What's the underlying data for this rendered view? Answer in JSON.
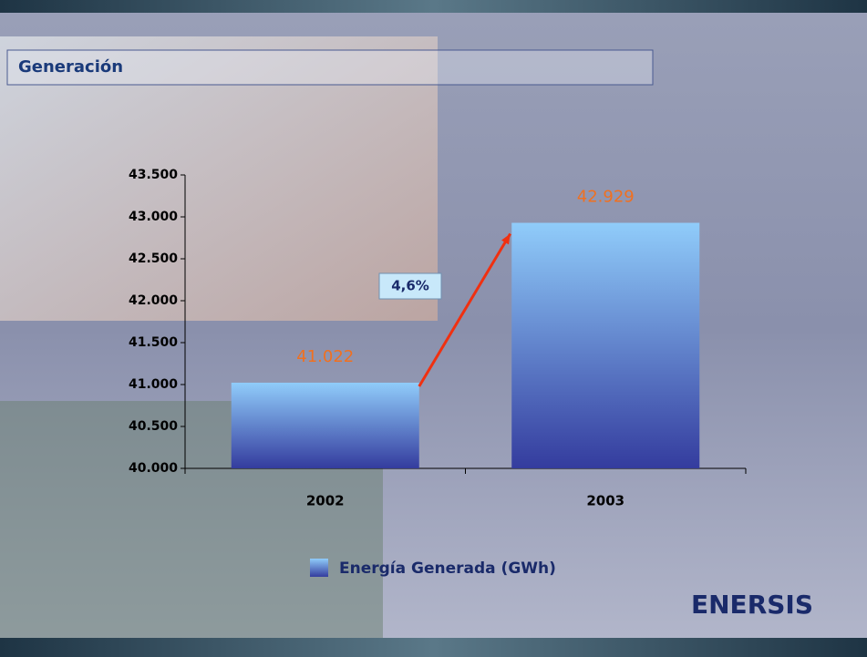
{
  "chart_data": {
    "type": "bar",
    "title": "Generación",
    "categories": [
      "2002",
      "2003"
    ],
    "series": [
      {
        "name": "Energía Generada (GWh)",
        "color": "#343c9e",
        "values": [
          41022,
          42929
        ],
        "value_labels": [
          "41.022",
          "42.929"
        ]
      }
    ],
    "ylim": [
      40000,
      43500
    ],
    "yticks": [
      {
        "value": 40000,
        "label": "40.000"
      },
      {
        "value": 40500,
        "label": "40.500"
      },
      {
        "value": 41000,
        "label": "41.000"
      },
      {
        "value": 41500,
        "label": "41.500"
      },
      {
        "value": 42000,
        "label": "42.000"
      },
      {
        "value": 42500,
        "label": "42.500"
      },
      {
        "value": 43000,
        "label": "43.000"
      },
      {
        "value": 43500,
        "label": "43.500"
      }
    ],
    "annotations": [
      {
        "text": "4,6%"
      }
    ],
    "value_label_color": "#f07020"
  },
  "logo": "ENERSIS"
}
